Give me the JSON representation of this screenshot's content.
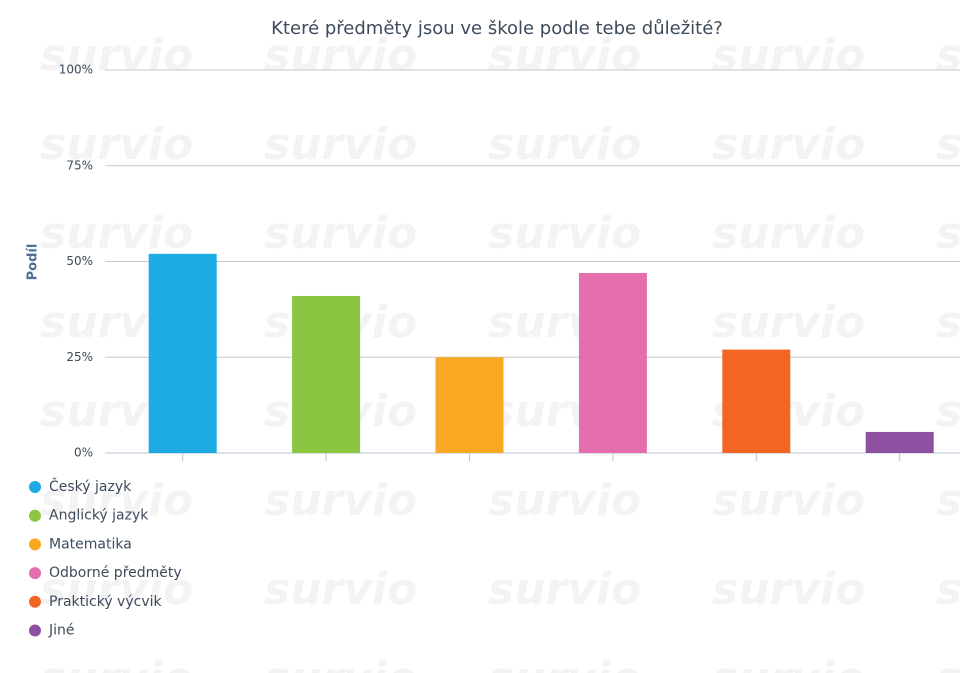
{
  "chart_data": {
    "type": "bar",
    "title": "Které předměty jsou ve škole podle tebe důležité?",
    "y_label": "Podíl",
    "watermark": "survio",
    "categories": [
      "Český jazyk",
      "Anglický jazyk",
      "Matematika",
      "Odborné předměty",
      "Praktický výcvik",
      "Jiné"
    ],
    "values": [
      52,
      41,
      25,
      47,
      27,
      5.5
    ],
    "colors": [
      "#1eaae2",
      "#8bc541",
      "#f9a824",
      "#e56fac",
      "#f26522",
      "#8e50a0"
    ],
    "ylim": [
      0,
      100
    ],
    "yticks": [
      {
        "value": 0,
        "label": "0%"
      },
      {
        "value": 25,
        "label": "25%"
      },
      {
        "value": 50,
        "label": "50%"
      },
      {
        "value": 75,
        "label": "75%"
      },
      {
        "value": 100,
        "label": "100%"
      }
    ],
    "grid": true
  }
}
